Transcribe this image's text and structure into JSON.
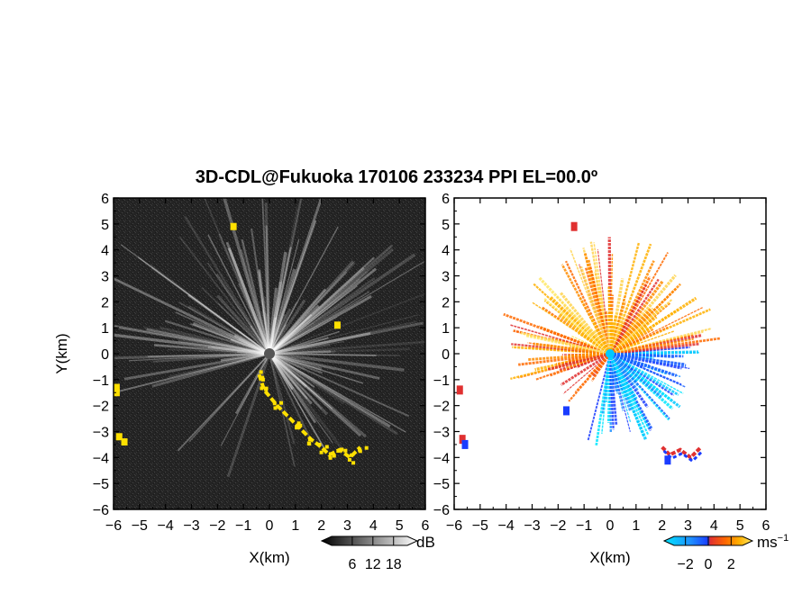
{
  "title": "3D-CDL@Fukuoka 170106 233234 PPI EL=00.0º",
  "chart_data": [
    {
      "type": "heatmap",
      "panel": "reflectivity",
      "xlabel": "X(km)",
      "ylabel": "Y(km)",
      "xlim": [
        -6,
        6
      ],
      "ylim": [
        -6,
        6
      ],
      "xticks": [
        "−6",
        "−5",
        "−4",
        "−3",
        "−2",
        "−1",
        "0",
        "1",
        "2",
        "3",
        "4",
        "5",
        "6"
      ],
      "yticks": [
        "6",
        "5",
        "4",
        "3",
        "2",
        "1",
        "0",
        "−1",
        "−2",
        "−3",
        "−4",
        "−5",
        "−6"
      ],
      "colorbar": {
        "unit": "dB",
        "ticks": [
          "6",
          "12",
          "18"
        ],
        "range": [
          0,
          22
        ],
        "colors": [
          "#000000",
          "#ffffff"
        ]
      },
      "background_color": "#2a2a2a",
      "echo_color": "#ffe000",
      "echo_path_xy_km": [
        [
          -0.4,
          -0.8
        ],
        [
          -0.2,
          -1.4
        ],
        [
          0.3,
          -2.0
        ],
        [
          1.0,
          -2.7
        ],
        [
          1.6,
          -3.3
        ],
        [
          2.0,
          -3.6
        ],
        [
          2.3,
          -3.9
        ],
        [
          2.7,
          -3.7
        ],
        [
          3.1,
          -4.0
        ],
        [
          3.5,
          -3.6
        ]
      ]
    },
    {
      "type": "heatmap",
      "panel": "doppler velocity",
      "xlabel": "X(km)",
      "ylabel": "",
      "xlim": [
        -6,
        6
      ],
      "ylim": [
        -6,
        6
      ],
      "xticks": [
        "−6",
        "−5",
        "−4",
        "−3",
        "−2",
        "−1",
        "0",
        "1",
        "2",
        "3",
        "4",
        "5",
        "6"
      ],
      "yticks": [
        "6",
        "5",
        "4",
        "3",
        "2",
        "1",
        "0",
        "−1",
        "−2",
        "−3",
        "−4",
        "−5",
        "−6"
      ],
      "colorbar": {
        "unit": "ms",
        "unit_exponent": "−1",
        "ticks": [
          "−2",
          "0",
          "2"
        ],
        "range": [
          -3,
          3
        ],
        "colors": [
          "#00e5ff",
          "#1e90ff",
          "#1a3cff",
          "#e03030",
          "#ff6a00",
          "#ffb000",
          "#ffe866"
        ]
      },
      "approaching_color": "#00d8ff",
      "receding_color": "#ff8c00"
    }
  ]
}
